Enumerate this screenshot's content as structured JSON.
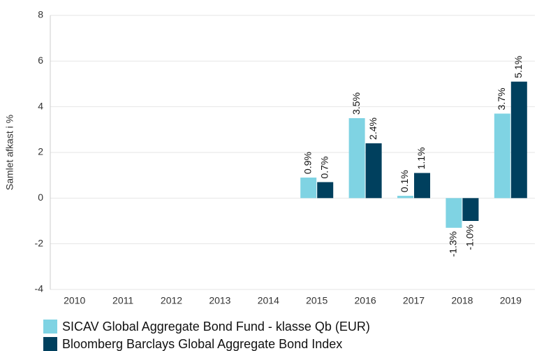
{
  "chart_data": {
    "type": "bar",
    "y_label": "Samlet afkast i %",
    "categories": [
      "2010",
      "2011",
      "2012",
      "2013",
      "2014",
      "2015",
      "2016",
      "2017",
      "2018",
      "2019"
    ],
    "series": [
      {
        "name": "SICAV Global Aggregate Bond Fund - klasse Qb (EUR)",
        "color": "#7fd3e3",
        "values": [
          null,
          null,
          null,
          null,
          null,
          0.9,
          3.5,
          0.1,
          -1.3,
          3.7
        ],
        "value_labels": [
          null,
          null,
          null,
          null,
          null,
          "0.9%",
          "3.5%",
          "0.1%",
          "-1.3%",
          "3.7%"
        ]
      },
      {
        "name": "Bloomberg Barclays Global Aggregate Bond Index",
        "color": "#00405e",
        "values": [
          null,
          null,
          null,
          null,
          null,
          0.7,
          2.4,
          1.1,
          -1.0,
          5.1
        ],
        "value_labels": [
          null,
          null,
          null,
          null,
          null,
          "0.7%",
          "2.4%",
          "1.1%",
          "-1.0%",
          "5.1%"
        ]
      }
    ],
    "ylim": [
      -4,
      8
    ],
    "yticks": [
      -4,
      -2,
      0,
      2,
      4,
      6,
      8
    ],
    "grid": true
  }
}
